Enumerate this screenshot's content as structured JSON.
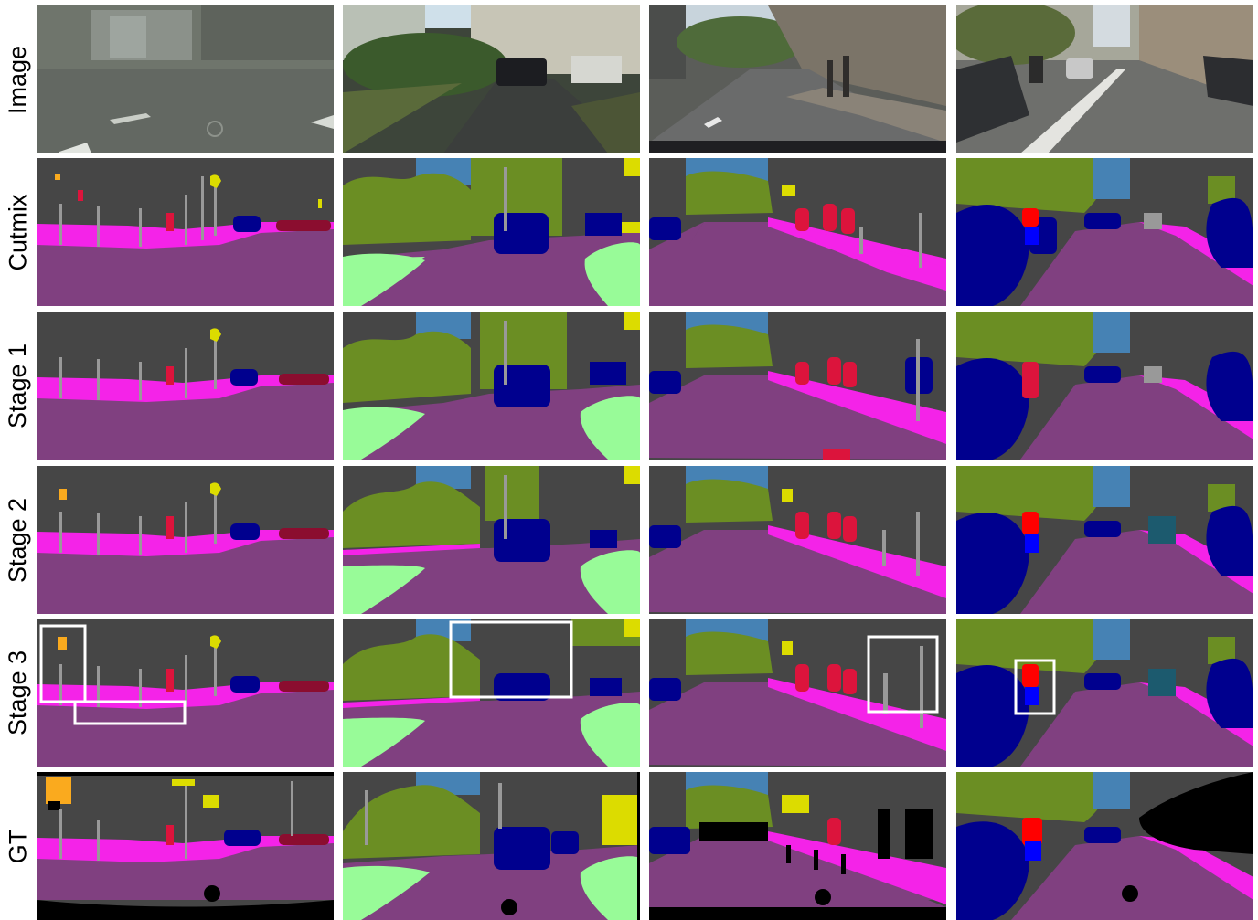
{
  "rows": [
    {
      "label": "Image"
    },
    {
      "label": "Cutmix"
    },
    {
      "label": "Stage 1"
    },
    {
      "label": "Stage 2"
    },
    {
      "label": "Stage 3"
    },
    {
      "label": "GT"
    }
  ],
  "colors": {
    "road": "#804080",
    "sidewalk": "#f423e8",
    "building": "#464646",
    "vegetation": "#6b8e23",
    "terrain": "#98fb98",
    "sky": "#4682b4",
    "car": "#00008e",
    "person": "#dc143c",
    "rider": "#ff0000",
    "pole": "#999999",
    "traffic_sign": "#dcdc00",
    "traffic_light": "#faaa1e",
    "void": "#000000",
    "highlight_box": "#ffffff"
  }
}
